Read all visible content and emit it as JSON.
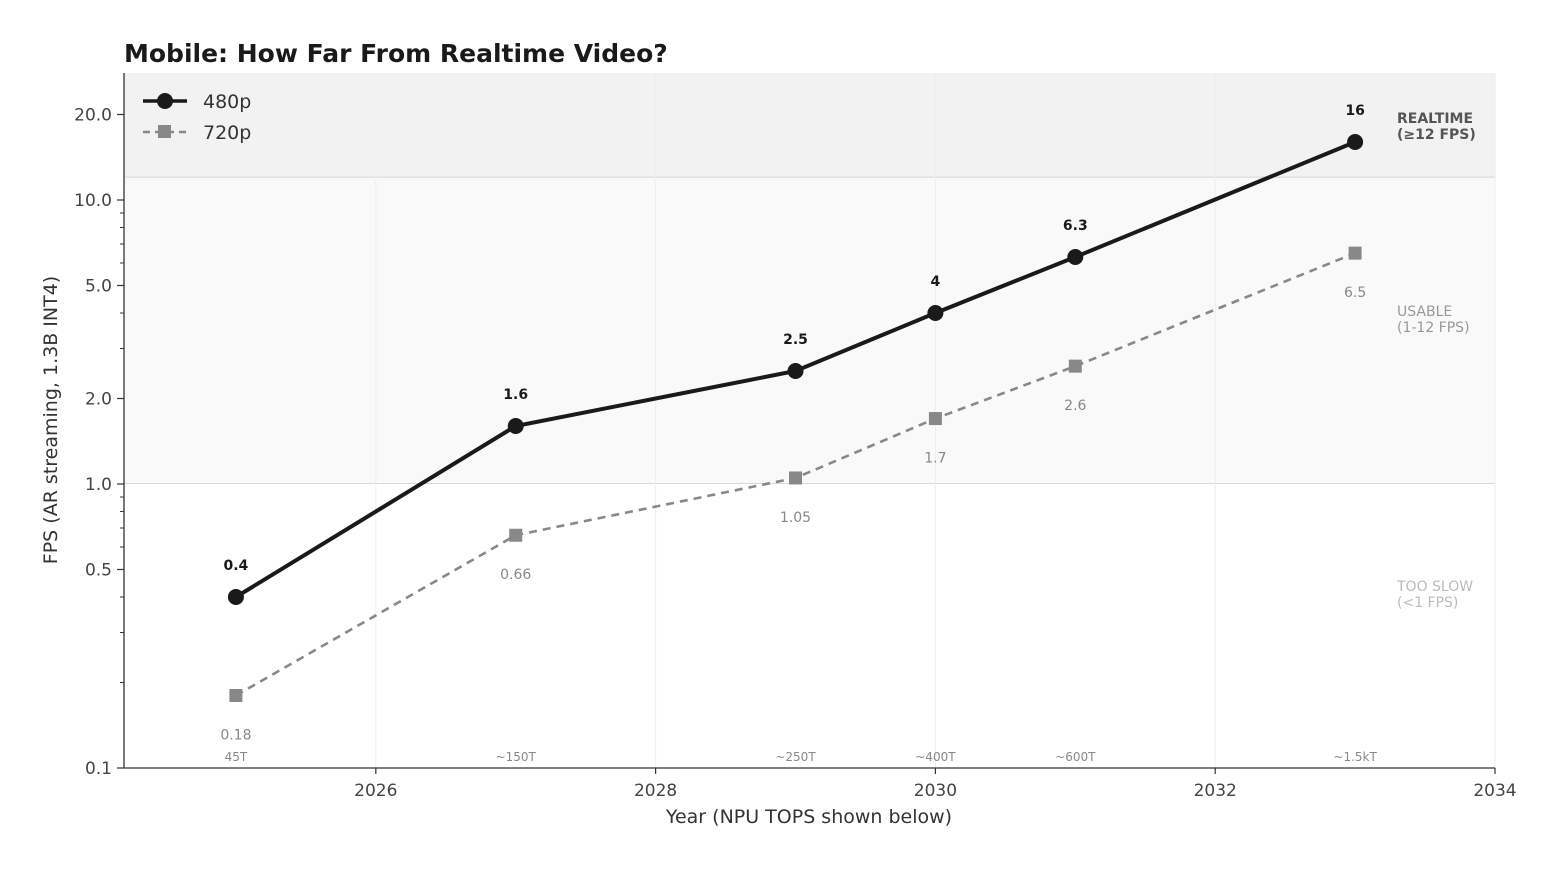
{
  "chart_data": {
    "type": "line",
    "title": "Mobile: How Far From Realtime Video?",
    "xlabel": "Year (NPU TOPS shown below)",
    "ylabel": "FPS (AR streaming, 1.3B INT4)",
    "xlim": [
      2024.2,
      2034
    ],
    "ylim": [
      0.1,
      28
    ],
    "yscale": "log",
    "x_ticks": [
      "2026",
      "2028",
      "2030",
      "2032",
      "2034"
    ],
    "y_ticks": [
      "0.1",
      "0.5",
      "1.0",
      "2.0",
      "5.0",
      "10.0",
      "20.0"
    ],
    "legend_position": "top-left",
    "x": [
      2025,
      2027,
      2029,
      2030,
      2031,
      2033
    ],
    "tops_labels": [
      "45T",
      "~150T",
      "~250T",
      "~400T",
      "~600T",
      "~1.5kT"
    ],
    "series": [
      {
        "name": "480p",
        "values": [
          0.4,
          1.6,
          2.5,
          4,
          6.3,
          16
        ],
        "labels": [
          "0.4",
          "1.6",
          "2.5",
          "4",
          "6.3",
          "16"
        ],
        "color": "#1a1a1a",
        "marker": "circle",
        "linestyle": "solid"
      },
      {
        "name": "720p",
        "values": [
          0.18,
          0.66,
          1.05,
          1.7,
          2.6,
          6.5
        ],
        "labels": [
          "0.18",
          "0.66",
          "1.05",
          "1.7",
          "2.6",
          "6.5"
        ],
        "color": "#888888",
        "marker": "square",
        "linestyle": "dashed"
      }
    ],
    "bands": [
      {
        "label_line1": "REALTIME",
        "label_line2": "(≥12 FPS)",
        "from": 12,
        "to": 28,
        "color": "#f2f2f2",
        "text_color": "#555555"
      },
      {
        "label_line1": "USABLE",
        "label_line2": "(1-12 FPS)",
        "from": 1,
        "to": 12,
        "color": "#f9f9f9",
        "text_color": "#999999"
      },
      {
        "label_line1": "TOO SLOW",
        "label_line2": "(<1 FPS)",
        "from": 0.1,
        "to": 1,
        "color": "#ffffff",
        "text_color": "#bbbbbb"
      }
    ]
  }
}
